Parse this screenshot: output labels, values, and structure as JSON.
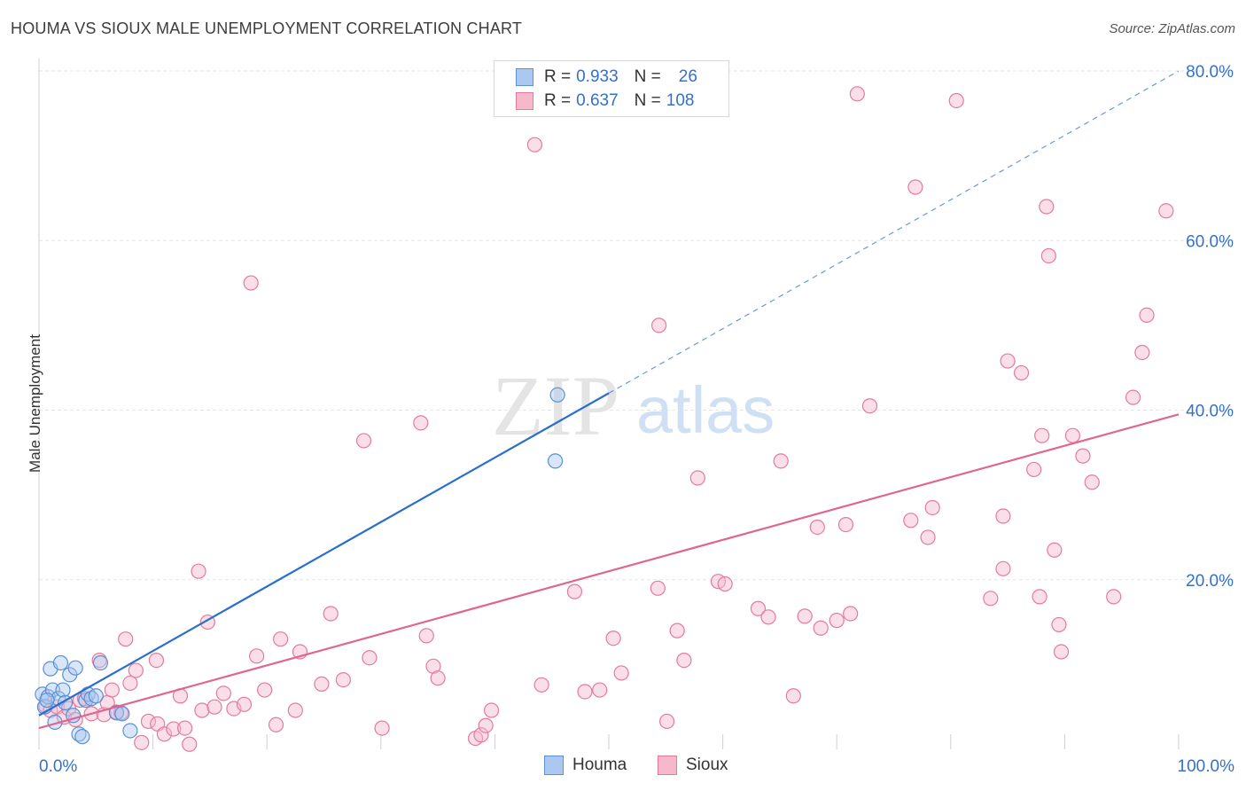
{
  "title": "HOUMA VS SIOUX MALE UNEMPLOYMENT CORRELATION CHART",
  "source": "Source: ZipAtlas.com",
  "watermark": {
    "zip": "ZIP",
    "atlas": "atlas"
  },
  "colors": {
    "houma_fill": "#aac8f0",
    "houma_stroke": "#5b8fd6",
    "houma_line": "#2a6fcc",
    "sioux_fill": "#f6b8cb",
    "sioux_stroke": "#e57a9c",
    "sioux_line": "#e0658f",
    "axis_label": "#3470c8",
    "grid": "#e6e6e6"
  },
  "legend": {
    "houma": {
      "r_label": "R = ",
      "r_value": "0.933",
      "n_label": "N = ",
      "n_value": "26"
    },
    "sioux": {
      "r_label": "R = ",
      "r_value": "0.637",
      "n_label": "N = ",
      "n_value": "108"
    }
  },
  "series_labels": {
    "houma": "Houma",
    "sioux": "Sioux"
  },
  "chart_data": {
    "type": "scatter",
    "title": "HOUMA VS SIOUX MALE UNEMPLOYMENT CORRELATION CHART",
    "xlabel": "",
    "ylabel": "Male Unemployment",
    "xlim": [
      0,
      100
    ],
    "ylim": [
      0,
      80
    ],
    "x_tick_labels": [
      "0.0%",
      "100.0%"
    ],
    "y_tick_labels": [
      "20.0%",
      "40.0%",
      "60.0%",
      "80.0%"
    ],
    "y_ticks": [
      20,
      40,
      60,
      80
    ],
    "grid": true,
    "legend_position": "top-center and bottom",
    "series": [
      {
        "name": "Houma",
        "trend": {
          "x0": 0,
          "y0": 4.0,
          "x1": 50,
          "y1": 42.0,
          "extended_x1": 100,
          "extended_y1": 80.0
        },
        "points": [
          [
            0.3,
            6.5
          ],
          [
            0.5,
            5.0
          ],
          [
            0.8,
            6.2
          ],
          [
            1.0,
            9.5
          ],
          [
            1.2,
            7.0
          ],
          [
            1.4,
            3.2
          ],
          [
            1.7,
            6.0
          ],
          [
            1.9,
            10.2
          ],
          [
            2.1,
            7.0
          ],
          [
            2.7,
            8.8
          ],
          [
            3.0,
            4.0
          ],
          [
            3.2,
            9.6
          ],
          [
            3.5,
            1.8
          ],
          [
            3.8,
            1.5
          ],
          [
            4.1,
            5.8
          ],
          [
            4.3,
            6.5
          ],
          [
            4.6,
            6.0
          ],
          [
            5.0,
            6.3
          ],
          [
            5.4,
            10.2
          ],
          [
            6.8,
            4.3
          ],
          [
            7.3,
            4.2
          ],
          [
            8.0,
            2.2
          ],
          [
            2.3,
            5.5
          ],
          [
            0.7,
            5.8
          ],
          [
            45.3,
            34.0
          ],
          [
            45.5,
            41.8
          ]
        ]
      },
      {
        "name": "Sioux",
        "trend": {
          "x0": 0,
          "y0": 2.5,
          "x1": 100,
          "y1": 39.5
        },
        "points": [
          [
            0.6,
            5.1
          ],
          [
            1.0,
            4.6
          ],
          [
            1.6,
            5.0
          ],
          [
            2.2,
            3.8
          ],
          [
            2.6,
            4.8
          ],
          [
            3.2,
            3.5
          ],
          [
            3.6,
            5.8
          ],
          [
            4.0,
            6.0
          ],
          [
            4.6,
            4.2
          ],
          [
            5.3,
            10.5
          ],
          [
            5.7,
            4.1
          ],
          [
            6.0,
            5.5
          ],
          [
            6.4,
            7.0
          ],
          [
            6.8,
            4.4
          ],
          [
            7.2,
            4.3
          ],
          [
            7.6,
            13.0
          ],
          [
            8.0,
            7.8
          ],
          [
            8.5,
            9.3
          ],
          [
            9.0,
            0.8
          ],
          [
            9.6,
            3.3
          ],
          [
            10.3,
            10.5
          ],
          [
            10.4,
            3.0
          ],
          [
            11.0,
            1.8
          ],
          [
            11.8,
            2.4
          ],
          [
            12.4,
            6.3
          ],
          [
            12.8,
            2.5
          ],
          [
            13.2,
            0.6
          ],
          [
            14.0,
            21.0
          ],
          [
            14.3,
            4.6
          ],
          [
            14.8,
            15.0
          ],
          [
            15.4,
            5.0
          ],
          [
            16.2,
            6.6
          ],
          [
            17.1,
            4.8
          ],
          [
            18.0,
            5.3
          ],
          [
            18.6,
            55.0
          ],
          [
            19.1,
            11.0
          ],
          [
            19.8,
            7.0
          ],
          [
            20.8,
            2.9
          ],
          [
            21.2,
            13.0
          ],
          [
            22.5,
            4.6
          ],
          [
            22.9,
            11.5
          ],
          [
            24.8,
            7.7
          ],
          [
            25.6,
            16.0
          ],
          [
            26.7,
            8.2
          ],
          [
            28.5,
            36.4
          ],
          [
            29.0,
            10.8
          ],
          [
            30.1,
            2.5
          ],
          [
            33.5,
            38.5
          ],
          [
            34.0,
            13.4
          ],
          [
            34.6,
            9.8
          ],
          [
            35.0,
            8.4
          ],
          [
            38.3,
            1.3
          ],
          [
            38.8,
            1.7
          ],
          [
            39.2,
            2.8
          ],
          [
            39.7,
            4.6
          ],
          [
            43.5,
            71.3
          ],
          [
            44.1,
            7.6
          ],
          [
            47.0,
            18.6
          ],
          [
            47.9,
            6.8
          ],
          [
            49.2,
            7.0
          ],
          [
            50.4,
            13.1
          ],
          [
            51.1,
            9.0
          ],
          [
            54.3,
            19.0
          ],
          [
            54.4,
            50.0
          ],
          [
            55.1,
            3.3
          ],
          [
            56.0,
            14.0
          ],
          [
            56.6,
            10.5
          ],
          [
            57.8,
            32.0
          ],
          [
            59.6,
            19.8
          ],
          [
            60.2,
            19.5
          ],
          [
            63.1,
            16.6
          ],
          [
            64.0,
            15.6
          ],
          [
            65.1,
            34.0
          ],
          [
            66.2,
            6.3
          ],
          [
            67.2,
            15.7
          ],
          [
            68.3,
            26.2
          ],
          [
            68.6,
            14.3
          ],
          [
            70.0,
            15.2
          ],
          [
            70.8,
            26.5
          ],
          [
            71.2,
            16.0
          ],
          [
            71.8,
            77.3
          ],
          [
            72.9,
            40.5
          ],
          [
            76.5,
            27.0
          ],
          [
            76.9,
            66.3
          ],
          [
            78.0,
            25.0
          ],
          [
            78.4,
            28.5
          ],
          [
            80.5,
            76.5
          ],
          [
            83.5,
            17.8
          ],
          [
            84.6,
            27.5
          ],
          [
            84.6,
            21.3
          ],
          [
            85.0,
            45.8
          ],
          [
            86.2,
            44.4
          ],
          [
            87.3,
            33.0
          ],
          [
            87.8,
            18.0
          ],
          [
            88.0,
            37.0
          ],
          [
            88.4,
            64.0
          ],
          [
            88.6,
            58.2
          ],
          [
            89.1,
            23.5
          ],
          [
            89.5,
            14.7
          ],
          [
            89.7,
            11.5
          ],
          [
            90.7,
            37.0
          ],
          [
            91.6,
            34.6
          ],
          [
            92.4,
            31.5
          ],
          [
            94.3,
            18.0
          ],
          [
            96.0,
            41.5
          ],
          [
            96.8,
            46.8
          ],
          [
            97.2,
            51.2
          ],
          [
            98.9,
            63.5
          ]
        ]
      }
    ]
  }
}
